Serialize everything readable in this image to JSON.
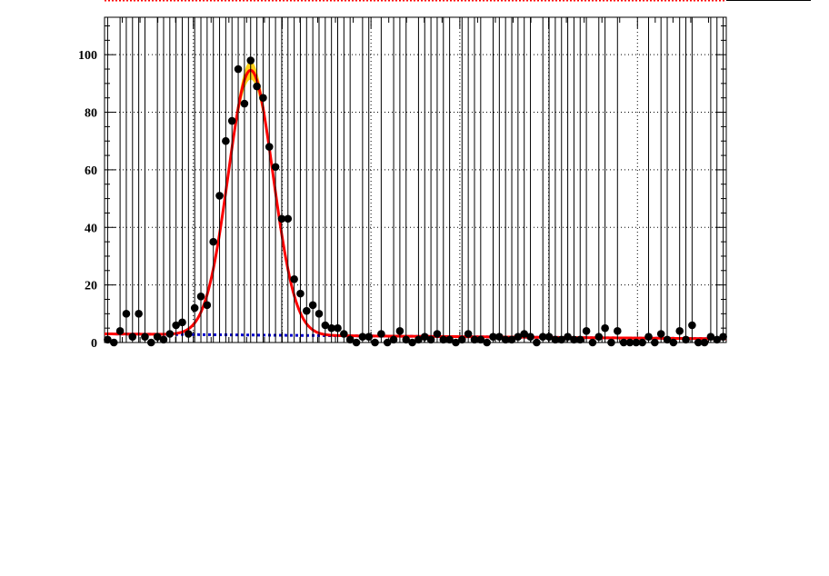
{
  "chart_data": {
    "type": "scatter",
    "title": "",
    "xlabel": "",
    "ylabel": "",
    "xlim": [
      0,
      100
    ],
    "ylim": [
      0,
      113
    ],
    "grid": true,
    "y_ticks": [
      0,
      20,
      40,
      60,
      80,
      100
    ],
    "y_tick_labels": [
      "0",
      "20",
      "40",
      "60",
      "80",
      "100"
    ],
    "colors": {
      "points": "#000000",
      "fit": "#ff0000",
      "background_fit": "#0000cc",
      "signal_band": "#ffcc00",
      "grid": "#000000"
    },
    "series": [
      {
        "kind": "data",
        "x": [
          0.5,
          1.5,
          2.5,
          3.5,
          4.5,
          5.5,
          6.5,
          7.5,
          8.5,
          9.5,
          10.5,
          11.5,
          12.5,
          13.5,
          14.5,
          15.5,
          16.5,
          17.5,
          18.5,
          19.5,
          20.5,
          21.5,
          22.5,
          23.5,
          24.5,
          25.5,
          26.5,
          27.5,
          28.5,
          29.5,
          30.5,
          31.5,
          32.5,
          33.5,
          34.5,
          35.5,
          36.5,
          37.5,
          38.5,
          39.5,
          40.5,
          41.5,
          42.5,
          43.5,
          44.5,
          45.5,
          46.5,
          47.5,
          48.5,
          49.5,
          50.5,
          51.5,
          52.5,
          53.5,
          54.5,
          55.5,
          56.5,
          57.5,
          58.5,
          59.5,
          60.5,
          61.5,
          62.5,
          63.5,
          64.5,
          65.5,
          66.5,
          67.5,
          68.5,
          69.5,
          70.5,
          71.5,
          72.5,
          73.5,
          74.5,
          75.5,
          76.5,
          77.5,
          78.5,
          79.5,
          80.5,
          81.5,
          82.5,
          83.5,
          84.5,
          85.5,
          86.5,
          87.5,
          88.5,
          89.5,
          90.5,
          91.5,
          92.5,
          93.5,
          94.5,
          95.5,
          96.5,
          97.5,
          98.5,
          99.5
        ],
        "y": [
          1,
          0,
          4,
          10,
          2,
          10,
          2,
          0,
          2,
          1,
          3,
          6,
          7,
          3,
          12,
          16,
          13,
          35,
          51,
          70,
          77,
          95,
          83,
          98,
          89,
          85,
          68,
          61,
          43,
          43,
          22,
          17,
          11,
          13,
          10,
          6,
          5,
          5,
          3,
          1,
          0,
          2,
          2,
          0,
          3,
          0,
          1,
          4,
          1,
          0,
          1,
          2,
          1,
          3,
          1,
          1,
          0,
          1,
          3,
          1,
          1,
          0,
          2,
          2,
          1,
          1,
          2,
          3,
          2,
          0,
          2,
          2,
          1,
          1,
          2,
          1,
          1,
          4,
          0,
          2,
          5,
          0,
          4,
          0,
          0,
          0,
          0,
          2,
          0,
          3,
          1,
          0,
          4,
          1,
          6,
          0,
          0,
          2,
          1,
          2
        ]
      },
      {
        "kind": "fit_total",
        "name": ""
      },
      {
        "kind": "fit_background",
        "name": ""
      }
    ],
    "fit_params": {
      "peak_mean": 23.5,
      "peak_sigma": 3.6,
      "peak_amplitude": 92,
      "background_at_0": 3.0,
      "background_at_100": 1.3
    }
  }
}
